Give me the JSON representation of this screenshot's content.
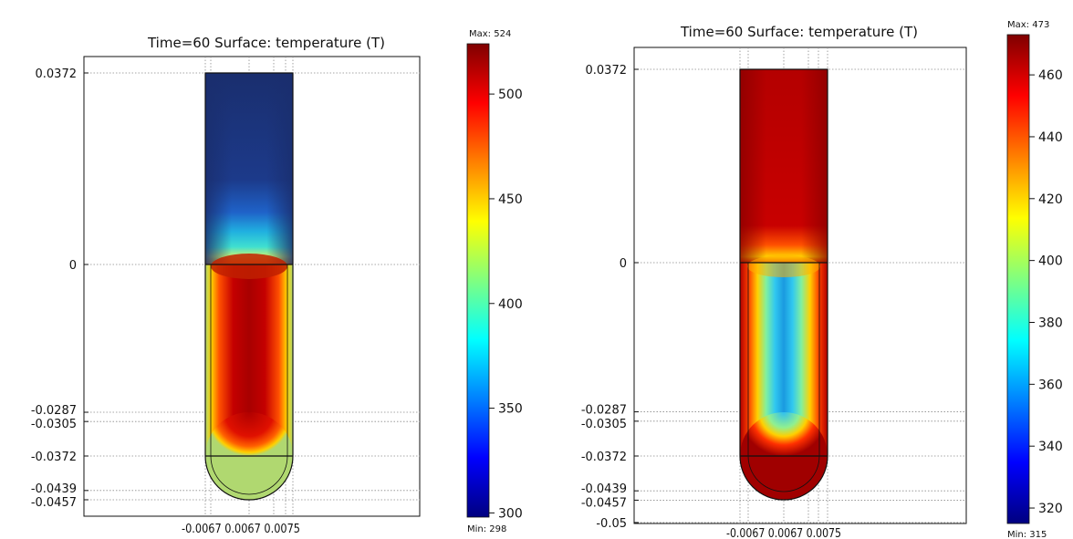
{
  "colors": {
    "jet": [
      "#00007f",
      "#0000ff",
      "#0080ff",
      "#00ffff",
      "#80ff80",
      "#ffff00",
      "#ff8000",
      "#ff0000",
      "#7f0000"
    ],
    "frame": "#111111",
    "grid": "#9a9a9a"
  },
  "chart_data": [
    {
      "type": "heatmap",
      "title": "Time=60  Surface: temperature (T)",
      "y_ticks": [
        {
          "value": 0.0372,
          "label": "0.0372"
        },
        {
          "value": 0,
          "label": "0"
        },
        {
          "value": -0.0287,
          "label": "-0.0287"
        },
        {
          "value": -0.0305,
          "label": "-0.0305"
        },
        {
          "value": -0.0372,
          "label": "-0.0372"
        },
        {
          "value": -0.0439,
          "label": "-0.0439"
        },
        {
          "value": -0.0457,
          "label": "-0.0457"
        }
      ],
      "x_tick_label": "-0.0067 0.0067 0.0075",
      "ylim": [
        -0.0475,
        0.0372
      ],
      "colorbar": {
        "max_label": "Max: 524",
        "min_label": "Min: 298",
        "range": [
          298,
          524
        ],
        "ticks": [
          {
            "value": 300,
            "label": "300"
          },
          {
            "value": 350,
            "label": "350"
          },
          {
            "value": 400,
            "label": "400"
          },
          {
            "value": 450,
            "label": "450"
          },
          {
            "value": 500,
            "label": "500"
          }
        ]
      }
    },
    {
      "type": "heatmap",
      "title": "Time=60  Surface: temperature (T)",
      "y_ticks": [
        {
          "value": 0.0372,
          "label": "0.0372"
        },
        {
          "value": 0,
          "label": "0"
        },
        {
          "value": -0.0287,
          "label": "-0.0287"
        },
        {
          "value": -0.0305,
          "label": "-0.0305"
        },
        {
          "value": -0.0372,
          "label": "-0.0372"
        },
        {
          "value": -0.0439,
          "label": "-0.0439"
        },
        {
          "value": -0.0457,
          "label": "-0.0457"
        },
        {
          "value": -0.05,
          "label": "-0.05"
        }
      ],
      "x_tick_label": "-0.0067 0.0067 0.0075",
      "ylim": [
        -0.05,
        0.0372
      ],
      "colorbar": {
        "max_label": "Max: 473",
        "min_label": "Min: 315",
        "range": [
          315,
          473
        ],
        "ticks": [
          {
            "value": 320,
            "label": "320"
          },
          {
            "value": 340,
            "label": "340"
          },
          {
            "value": 360,
            "label": "360"
          },
          {
            "value": 380,
            "label": "380"
          },
          {
            "value": 400,
            "label": "400"
          },
          {
            "value": 420,
            "label": "420"
          },
          {
            "value": 440,
            "label": "440"
          },
          {
            "value": 460,
            "label": "460"
          }
        ]
      }
    }
  ]
}
